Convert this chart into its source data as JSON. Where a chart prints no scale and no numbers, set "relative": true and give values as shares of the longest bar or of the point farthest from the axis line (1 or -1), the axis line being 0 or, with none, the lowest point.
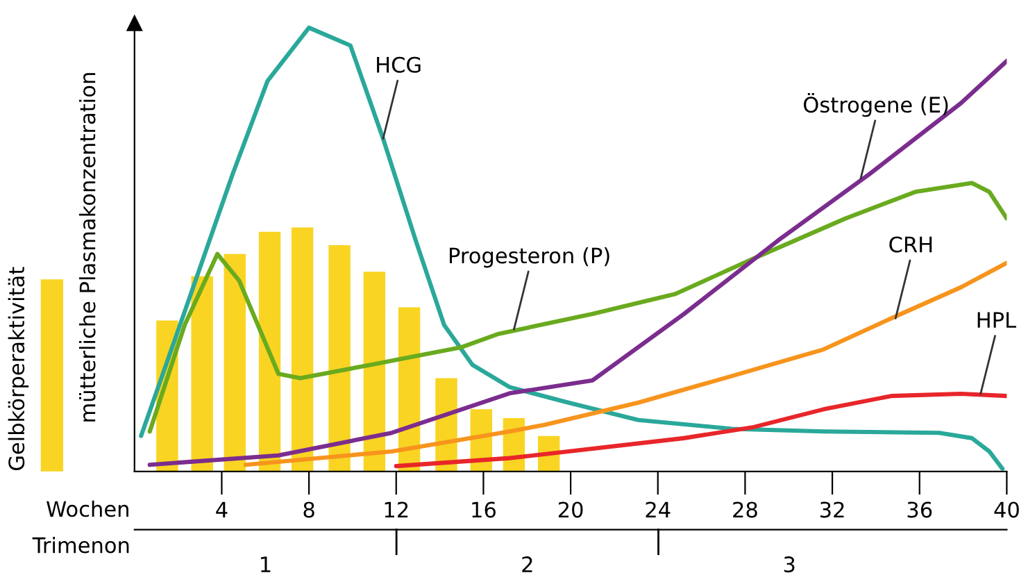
{
  "chart_data": {
    "type": "line",
    "relative": true,
    "ylabel": "mütterliche Plasmakonzentration",
    "xlabel": "Wochen",
    "xlim": [
      0,
      40
    ],
    "xticks": [
      4,
      8,
      12,
      16,
      20,
      24,
      28,
      32,
      36,
      40
    ],
    "x2label": "Trimenon",
    "x2lim": [
      0.5,
      3.83
    ],
    "x2ticks": [
      1,
      2,
      3
    ],
    "grid": false,
    "legend": "left",
    "marker": "none",
    "line_style": "solid",
    "series": [
      {
        "name": "Gelbkörperaktivität",
        "type": "bar",
        "color": "#f9d423",
        "x": [
          1.5,
          3.1,
          4.6,
          6.2,
          7.7,
          9.4,
          11.0,
          12.6,
          14.3,
          15.9,
          17.4,
          19.0
        ],
        "values": [
          0.34,
          0.44,
          0.49,
          0.54,
          0.55,
          0.51,
          0.45,
          0.37,
          0.21,
          0.14,
          0.12,
          0.08
        ]
      },
      {
        "color": "#2aa89a",
        "x": [
          0.3,
          2.3,
          4.5,
          6.1,
          8.0,
          9.9,
          11.4,
          12.9,
          14.2,
          15.5,
          17.2,
          19.9,
          23.1,
          27.4,
          31.6,
          36.9,
          38.4,
          39.2,
          39.8
        ],
        "values": [
          0.08,
          0.36,
          0.67,
          0.88,
          1.0,
          0.96,
          0.75,
          0.52,
          0.33,
          0.24,
          0.19,
          0.155,
          0.116,
          0.096,
          0.09,
          0.087,
          0.075,
          0.045,
          0.006
        ]
      },
      {
        "color": "#6aaa1e",
        "x": [
          0.7,
          2.3,
          3.8,
          4.8,
          6.6,
          7.6,
          10.8,
          15.0,
          16.7,
          21.0,
          24.8,
          28.4,
          32.6,
          35.8,
          38.4,
          39.2,
          40.0
        ],
        "values": [
          0.09,
          0.33,
          0.49,
          0.43,
          0.22,
          0.21,
          0.24,
          0.28,
          0.31,
          0.355,
          0.4,
          0.48,
          0.57,
          0.63,
          0.65,
          0.63,
          0.57
        ]
      },
      {
        "color": "#7b2d8e",
        "x": [
          0.7,
          6.6,
          11.8,
          17.2,
          21.0,
          25.2,
          29.5,
          33.7,
          37.9,
          40.0
        ],
        "values": [
          0.015,
          0.036,
          0.087,
          0.176,
          0.205,
          0.355,
          0.52,
          0.67,
          0.83,
          0.925
        ]
      },
      {
        "color": "#f7941d",
        "x": [
          5.1,
          11.8,
          17.2,
          18.8,
          23.1,
          27.4,
          31.6,
          34.7,
          37.9,
          40.0
        ],
        "values": [
          0.015,
          0.045,
          0.09,
          0.105,
          0.155,
          0.215,
          0.275,
          0.345,
          0.415,
          0.47
        ]
      },
      {
        "color": "#e8262a",
        "x": [
          12.0,
          17.2,
          19.9,
          25.2,
          28.4,
          31.6,
          34.7,
          37.9,
          40.0
        ],
        "values": [
          0.012,
          0.03,
          0.045,
          0.075,
          0.1,
          0.14,
          0.17,
          0.175,
          0.17
        ]
      }
    ],
    "annotations": [
      {
        "text": "HCG",
        "x": 11.4,
        "y": 0.75
      },
      {
        "text": "Progesteron (P)",
        "x": 17.4,
        "y": 0.32
      },
      {
        "text": "Östrogene (E)",
        "x": 33.3,
        "y": 0.66
      },
      {
        "text": "CRH",
        "x": 34.9,
        "y": 0.345
      },
      {
        "text": "HPL",
        "x": 38.8,
        "y": 0.175
      }
    ]
  }
}
